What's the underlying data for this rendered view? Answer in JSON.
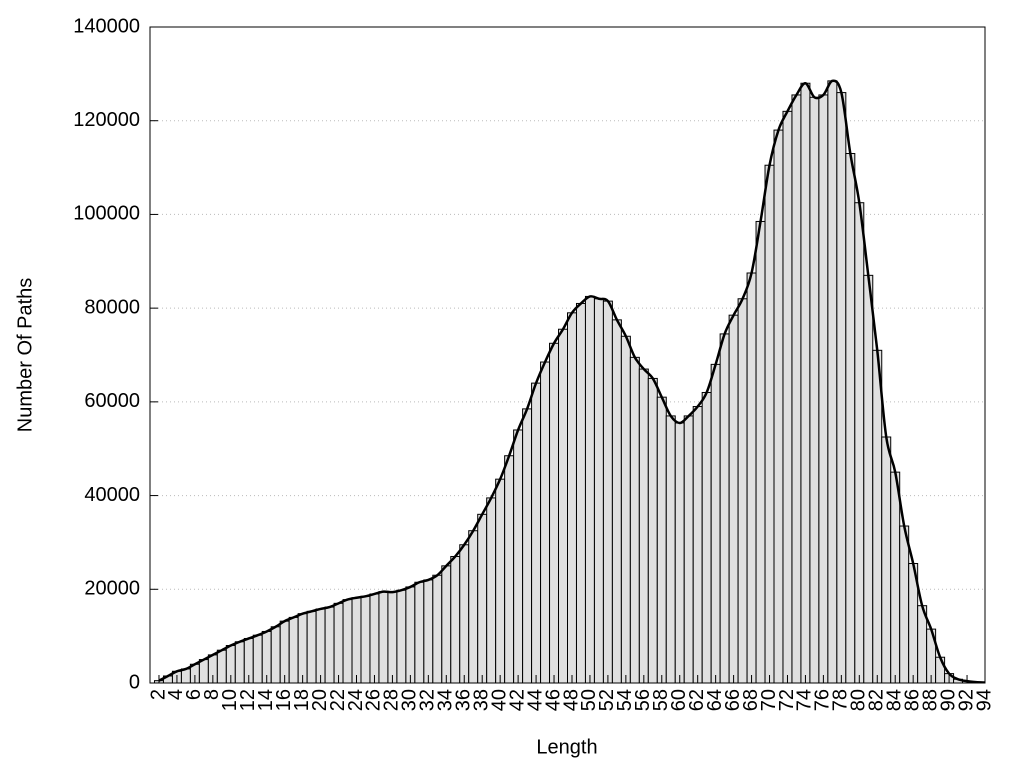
{
  "chart_data": {
    "type": "bar",
    "x_label": "Length",
    "y_label": "Number Of Paths",
    "x": [
      2,
      3,
      4,
      5,
      6,
      7,
      8,
      9,
      10,
      11,
      12,
      13,
      14,
      15,
      16,
      17,
      18,
      19,
      20,
      21,
      22,
      23,
      24,
      25,
      26,
      27,
      28,
      29,
      30,
      31,
      32,
      33,
      34,
      35,
      36,
      37,
      38,
      39,
      40,
      41,
      42,
      43,
      44,
      45,
      46,
      47,
      48,
      49,
      50,
      51,
      52,
      53,
      54,
      55,
      56,
      57,
      58,
      59,
      60,
      61,
      62,
      63,
      64,
      65,
      66,
      67,
      68,
      69,
      70,
      71,
      72,
      73,
      74,
      75,
      76,
      77,
      78,
      79,
      80,
      81,
      82,
      83,
      84,
      85,
      86,
      87,
      88,
      89,
      90,
      91,
      92,
      93,
      94
    ],
    "values": [
      500,
      1500,
      2500,
      3000,
      4000,
      5000,
      6000,
      7000,
      8000,
      8800,
      9500,
      10200,
      11000,
      12000,
      13200,
      14000,
      14800,
      15300,
      15800,
      16200,
      17000,
      17800,
      18200,
      18500,
      19000,
      19500,
      19400,
      19800,
      20500,
      21500,
      22000,
      23000,
      25000,
      27000,
      29500,
      32500,
      36000,
      39500,
      43500,
      48500,
      54000,
      58500,
      64000,
      68500,
      72500,
      75500,
      79000,
      81000,
      82500,
      82000,
      81500,
      77500,
      74000,
      69500,
      67000,
      65000,
      61000,
      57000,
      55500,
      57000,
      59000,
      62000,
      68000,
      74500,
      78500,
      82000,
      87500,
      98500,
      110500,
      118000,
      122000,
      125500,
      128000,
      125000,
      125500,
      128500,
      126000,
      113000,
      102500,
      87000,
      71000,
      52500,
      45000,
      33500,
      25500,
      16500,
      11500,
      5500,
      2000,
      800,
      400,
      200,
      100
    ],
    "color": "#e0e0e0",
    "line_color": "#000000",
    "xlim": [
      1,
      94
    ],
    "xticks": [
      2,
      4,
      6,
      8,
      10,
      12,
      14,
      16,
      18,
      20,
      22,
      24,
      26,
      28,
      30,
      32,
      34,
      36,
      38,
      40,
      42,
      44,
      46,
      48,
      50,
      52,
      54,
      56,
      58,
      60,
      62,
      64,
      66,
      68,
      70,
      72,
      74,
      76,
      78,
      80,
      82,
      84,
      86,
      88,
      90,
      92,
      94
    ],
    "ylim": [
      0,
      140000
    ],
    "yticks": [
      0,
      20000,
      40000,
      60000,
      80000,
      100000,
      120000,
      140000
    ],
    "grid": true
  }
}
